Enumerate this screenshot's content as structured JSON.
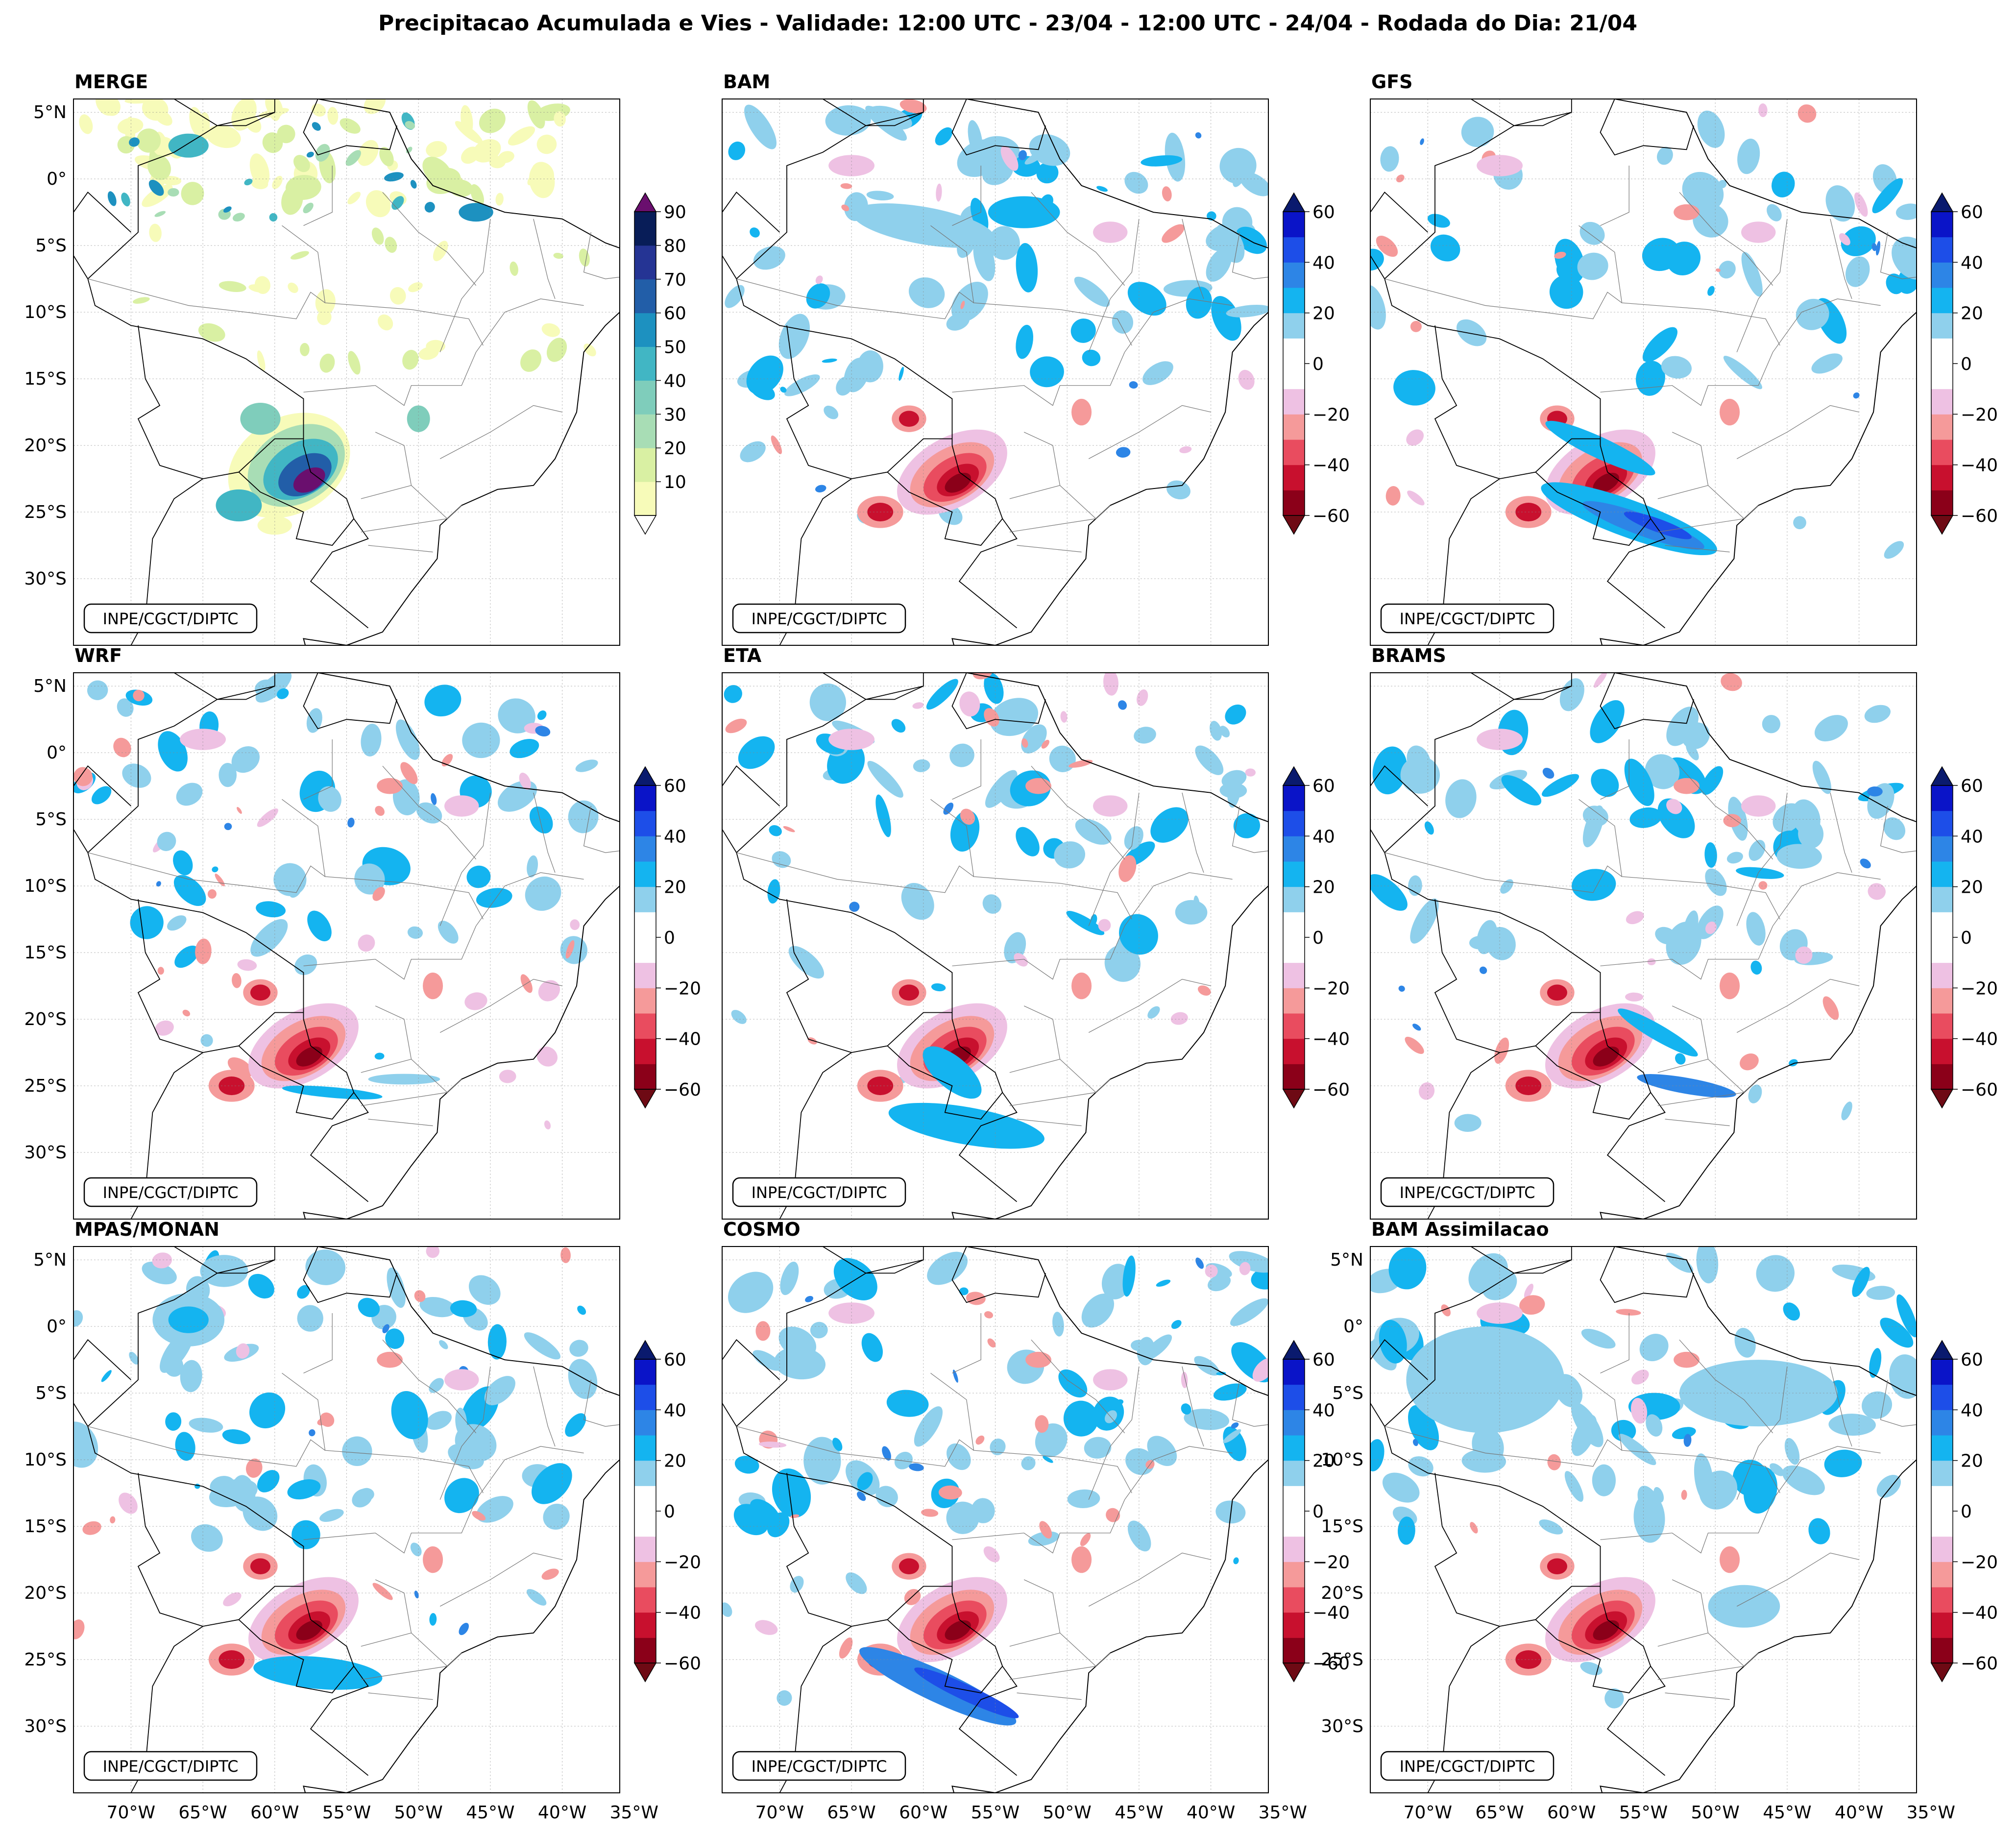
{
  "title": "Precipitacao Acumulada e Vies - Validade: 12:00 UTC - 23/04 - 12:00 UTC - 24/04 - Rodada do Dia: 21/04",
  "credit": "INPE/CGCT/DIPTC",
  "lat_labels": [
    "5°N",
    "0°",
    "5°S",
    "10°S",
    "15°S",
    "20°S",
    "25°S",
    "30°S"
  ],
  "lon_labels": [
    "70°W",
    "65°W",
    "60°W",
    "55°W",
    "50°W",
    "45°W",
    "40°W",
    "35°W"
  ],
  "precip_scale": {
    "ticks": [
      "90",
      "80",
      "70",
      "60",
      "50",
      "40",
      "30",
      "20",
      "10"
    ],
    "colors": [
      "#f7fbb9",
      "#d9f0a3",
      "#a8ddb5",
      "#7fcdbb",
      "#41b6c4",
      "#1d91c0",
      "#225ea8",
      "#253494",
      "#081d58"
    ],
    "over": "#6a0f6e",
    "under": "#ffffff"
  },
  "bias_scale": {
    "ticks": [
      "60",
      "40",
      "20",
      "0",
      "−20",
      "−40",
      "−60"
    ],
    "colors": [
      "#8b0019",
      "#c8102e",
      "#e94c5f",
      "#f59a9a",
      "#eec1e3",
      "#ffffff",
      "#ffffff",
      "#8fd0ec",
      "#14b4f0",
      "#2d85e6",
      "#1d4ee8",
      "#0a14c8"
    ],
    "over": "#0a1a6e",
    "under": "#6e0a14"
  },
  "panels": [
    {
      "name": "MERGE",
      "type": "precip"
    },
    {
      "name": "BAM",
      "type": "bias"
    },
    {
      "name": "GFS",
      "type": "bias"
    },
    {
      "name": "WRF",
      "type": "bias"
    },
    {
      "name": "ETA",
      "type": "bias"
    },
    {
      "name": "BRAMS",
      "type": "bias"
    },
    {
      "name": "MPAS/MONAN",
      "type": "bias"
    },
    {
      "name": "COSMO",
      "type": "bias"
    },
    {
      "name": "BAM Assimilacao",
      "type": "bias"
    }
  ]
}
